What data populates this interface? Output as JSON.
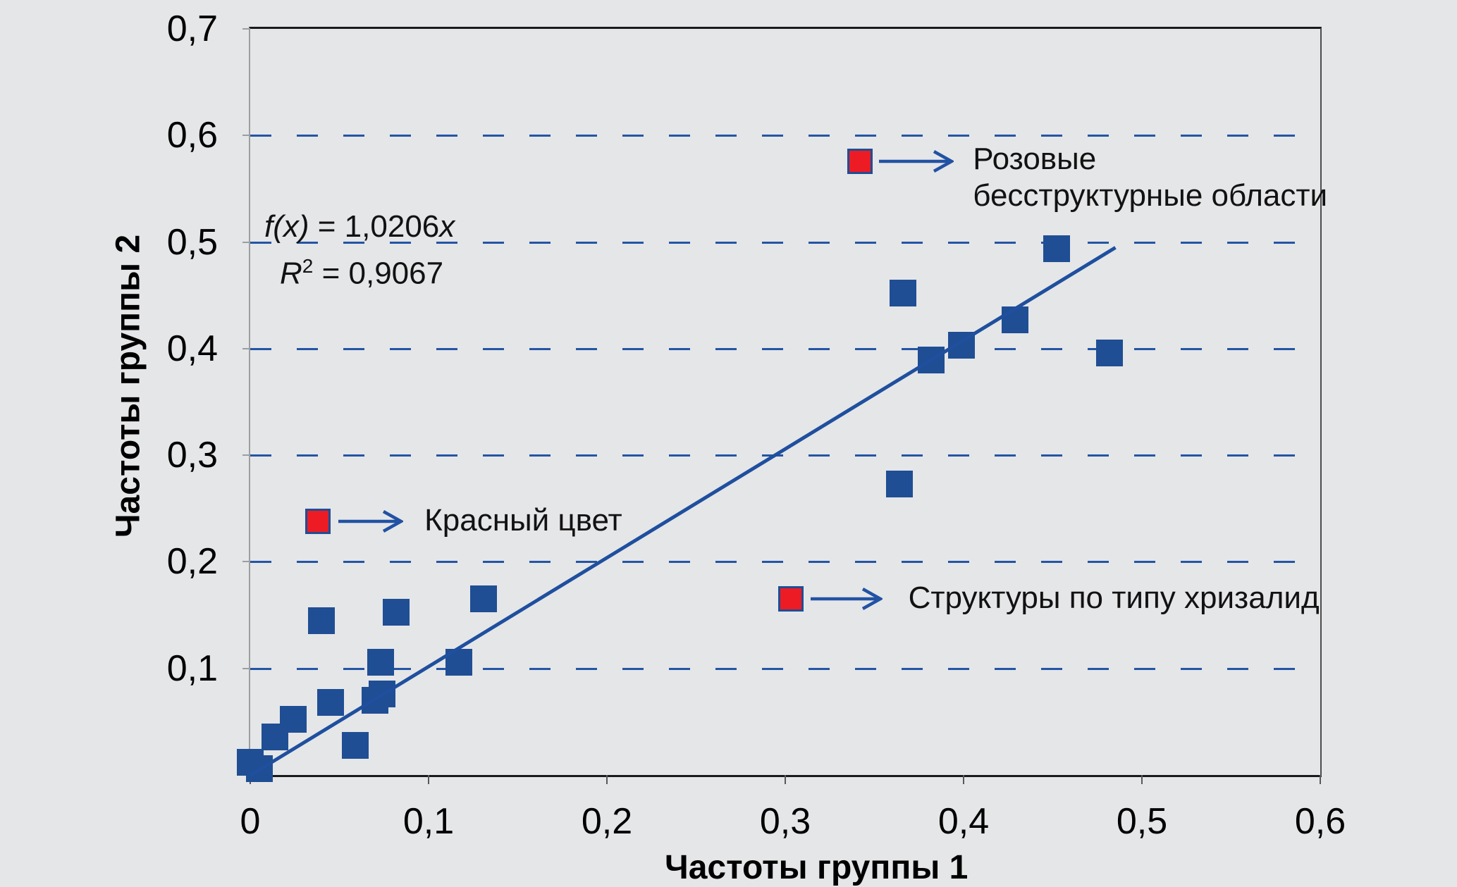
{
  "chart_data": {
    "type": "scatter",
    "title": "",
    "xlabel": "Частоты группы 1",
    "ylabel": "Частоты группы 2",
    "xlim": [
      0,
      0.6
    ],
    "ylim": [
      0,
      0.7
    ],
    "grid": "horizontal-dashed-blue",
    "legend_position": "none",
    "x_ticks": [
      {
        "v": 0.0,
        "label": "0"
      },
      {
        "v": 0.1,
        "label": "0,1"
      },
      {
        "v": 0.2,
        "label": "0,2"
      },
      {
        "v": 0.3,
        "label": "0,3"
      },
      {
        "v": 0.4,
        "label": "0,4"
      },
      {
        "v": 0.5,
        "label": "0,5"
      },
      {
        "v": 0.6,
        "label": "0,6"
      }
    ],
    "y_ticks": [
      {
        "v": 0.1,
        "label": "0,1"
      },
      {
        "v": 0.2,
        "label": "0,2"
      },
      {
        "v": 0.3,
        "label": "0,3"
      },
      {
        "v": 0.4,
        "label": "0,4"
      },
      {
        "v": 0.5,
        "label": "0,5"
      },
      {
        "v": 0.6,
        "label": "0,6"
      },
      {
        "v": 0.7,
        "label": "0,7"
      }
    ],
    "series": [
      {
        "name": "data-points",
        "marker": "square",
        "color": "#1f4e94",
        "points": [
          [
            0.0,
            0.012
          ],
          [
            0.005,
            0.006
          ],
          [
            0.014,
            0.036
          ],
          [
            0.024,
            0.052
          ],
          [
            0.045,
            0.068
          ],
          [
            0.059,
            0.028
          ],
          [
            0.07,
            0.07
          ],
          [
            0.074,
            0.076
          ],
          [
            0.073,
            0.106
          ],
          [
            0.117,
            0.106
          ],
          [
            0.04,
            0.145
          ],
          [
            0.082,
            0.153
          ],
          [
            0.131,
            0.165
          ],
          [
            0.364,
            0.273
          ],
          [
            0.366,
            0.452
          ],
          [
            0.382,
            0.389
          ],
          [
            0.399,
            0.403
          ],
          [
            0.429,
            0.427
          ],
          [
            0.452,
            0.494
          ],
          [
            0.482,
            0.396
          ]
        ]
      }
    ],
    "trendline": {
      "slope": 1.0206,
      "intercept": 0,
      "x_start": 0,
      "x_end": 0.485,
      "color": "#1f4f9e",
      "equation_text": "f(x) = 1,0206x",
      "r2_text": "R² = 0,9067"
    },
    "annotations": [
      {
        "marker_x": 0.342,
        "marker_y": 0.576,
        "marker_color": "#ed1c24",
        "lines": [
          "Розовые",
          "бесструктурные области"
        ]
      },
      {
        "marker_x": 0.038,
        "marker_y": 0.238,
        "marker_color": "#ed1c24",
        "lines": [
          "Красный цвет"
        ]
      },
      {
        "marker_x": 0.303,
        "marker_y": 0.165,
        "marker_color": "#ed1c24",
        "lines": [
          "Структуры по типу хризалид"
        ]
      }
    ]
  },
  "equation": {
    "fx_italic": "f(x)",
    "fx_rest": " = 1,0206",
    "fx_var_italic": "x",
    "r_italic": "R",
    "r_sup": "2",
    "r_rest": " = 0,9067"
  },
  "colors": {
    "background": "#e5e6e8",
    "marker_blue": "#1f4e94",
    "trendline_blue": "#1f4f9e",
    "gridline_blue": "#2455a4",
    "annotation_red": "#ed1c24",
    "arrow_blue": "#2152a3",
    "axis_dark": "#1a1a1a"
  }
}
